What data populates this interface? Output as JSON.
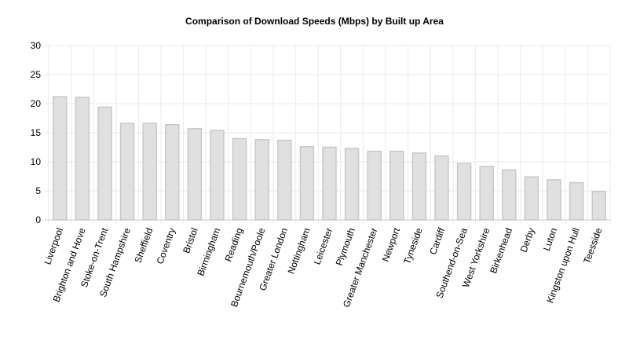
{
  "chart_data": {
    "type": "bar",
    "title": "Comparison of Download Speeds (Mbps) by Built up Area",
    "xlabel": "",
    "ylabel": "",
    "ylim": [
      0,
      30
    ],
    "yticks": [
      0,
      5,
      10,
      15,
      20,
      25,
      30
    ],
    "grid": true,
    "legend": "none",
    "colors": {
      "bar_fill": "#e0e0e0",
      "bar_stroke": "#c8c8c8",
      "grid": "#eaeaea",
      "axis": "#c8c8c8",
      "text": "#000000"
    },
    "categories": [
      "Liverpool",
      "Brighton and Hove",
      "Stoke-on-Trent",
      "South Hampshire",
      "Sheffield",
      "Coventry",
      "Bristol",
      "Birmingham",
      "Reading",
      "Bournemouth/Poole",
      "Greater London",
      "Nottingham",
      "Leicester",
      "Plymouth",
      "Greater Manchester",
      "Newport",
      "Tyneside",
      "Cardiff",
      "Southend-on-Sea",
      "West Yorkshire",
      "Birkenhead",
      "Derby",
      "Luton",
      "Kingston upon Hull",
      "Teesside"
    ],
    "values": [
      21.2,
      21.1,
      19.4,
      16.6,
      16.6,
      16.4,
      15.7,
      15.4,
      14.0,
      13.8,
      13.7,
      12.6,
      12.5,
      12.3,
      11.8,
      11.8,
      11.5,
      11.0,
      9.7,
      9.2,
      8.6,
      7.4,
      6.9,
      6.4,
      4.9
    ]
  }
}
